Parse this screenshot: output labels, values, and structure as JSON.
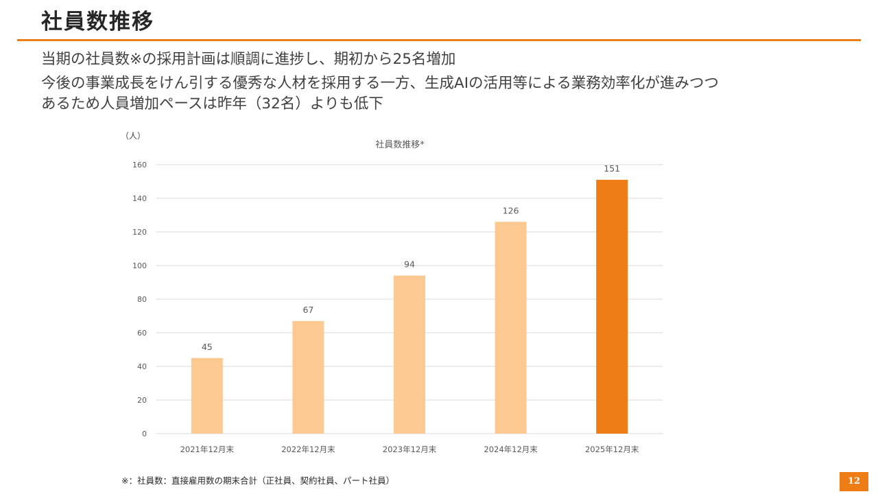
{
  "slide": {
    "title": "社員数推移",
    "summary": {
      "point1": "当期の社員数※の採用計画は順調に進捗し、期初から25名増加",
      "point2_line1": "今後の事業成長をけん引する優秀な人材を採用する一方、生成AIの活用等による業務効率化が進みつつ",
      "point2_line2": "あるため人員増加ペースは昨年（32名）よりも低下"
    },
    "footnote": "※：社員数：直接雇用数の期末合計（正社員、契約社員、パート社員）",
    "page_number": "12"
  },
  "colors": {
    "accent": "#ED7D14",
    "bar_past": "#FCC993",
    "bar_current": "#ED7D14",
    "gridline": "#D9D9D9",
    "axis_text": "#595959"
  },
  "chart_data": {
    "type": "bar",
    "title": "社員数推移*",
    "ylabel": "（人）",
    "xlabel": "",
    "categories": [
      "2021年12月末",
      "2022年12月末",
      "2023年12月末",
      "2024年12月末",
      "2025年12月末"
    ],
    "values": [
      45,
      67,
      94,
      126,
      151
    ],
    "highlight_index": 4,
    "ylim": [
      0,
      160
    ],
    "yticks": [
      0,
      20,
      40,
      60,
      80,
      100,
      120,
      140,
      160
    ],
    "grid": true,
    "legend": "none",
    "data_labels": true
  }
}
